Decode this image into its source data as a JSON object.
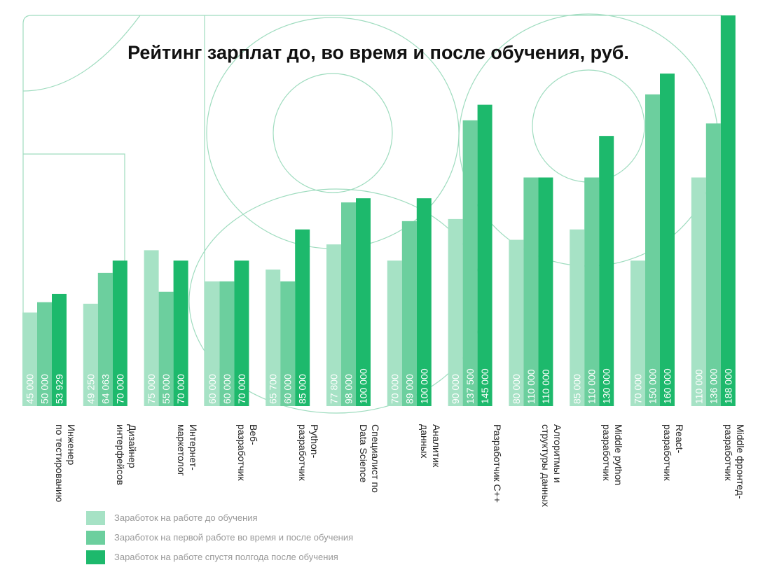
{
  "chart_data": {
    "type": "bar",
    "title": "Рейтинг зарплат до, во время и после обучения, руб.",
    "categories": [
      "Инженер\nпо тестированию",
      "Дизайнер\nинтерфейсов",
      "Интернет-\nмаркетолог",
      "Веб-\nразработчик",
      "Python-\nразработчик",
      "Специалист по\nData Science",
      "Аналитик\nданных",
      "Разработчик C++",
      "Алгоритмы и\nструктуры данных",
      "Middle python\nразработчик",
      "React-\nразработчик",
      "Middle фронтед-\nразработчик"
    ],
    "series": [
      {
        "name": "Заработок на работе до обучения",
        "color": "#a6e2c5",
        "values": [
          45000,
          49250,
          75000,
          60000,
          65700,
          77800,
          70000,
          90000,
          80000,
          85000,
          70000,
          110000
        ],
        "value_labels": [
          "45 000",
          "49 250",
          "75 000",
          "60 000",
          "65 700",
          "77 800",
          "70 000",
          "90 000",
          "80 000",
          "85 000",
          "70 000",
          "110 000"
        ]
      },
      {
        "name": "Заработок на первой работе во время и после обучения",
        "color": "#6ccf9e",
        "values": [
          50000,
          64063,
          55000,
          60000,
          60000,
          98000,
          89000,
          137500,
          110000,
          110000,
          150000,
          136000
        ],
        "value_labels": [
          "50 000",
          "64 063",
          "55 000",
          "60 000",
          "60 000",
          "98 000",
          "89 000",
          "137 500",
          "110 000",
          "110 000",
          "150 000",
          "136 000"
        ]
      },
      {
        "name": "Заработок на работе спустя полгода после обучения",
        "color": "#1db96c",
        "values": [
          53929,
          70000,
          70000,
          70000,
          85000,
          100000,
          100000,
          145000,
          110000,
          130000,
          160000,
          188000
        ],
        "value_labels": [
          "53 929",
          "70 000",
          "70 000",
          "70 000",
          "85 000",
          "100 000",
          "100 000",
          "145 000",
          "110 000",
          "130 000",
          "160 000",
          "188 000"
        ]
      }
    ]
  }
}
